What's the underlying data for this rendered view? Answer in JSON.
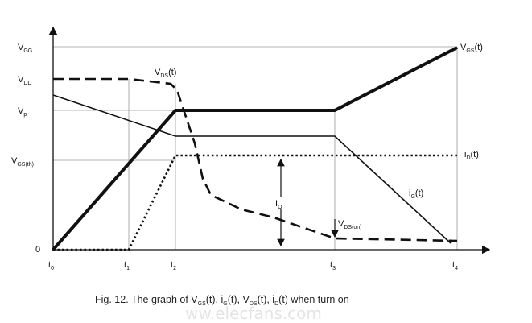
{
  "y_labels": {
    "vgg": "V",
    "vgg_sub": "GG",
    "vdd": "V",
    "vdd_sub": "DD",
    "vp": "V",
    "vp_sub": "p",
    "vgsth": "V",
    "vgsth_sub": "GS(th)",
    "zero": "0"
  },
  "t_labels": {
    "t0": "t",
    "t0_sub": "0",
    "t1": "t",
    "t1_sub": "1",
    "t2": "t",
    "t2_sub": "2",
    "t3": "t",
    "t3_sub": "3",
    "t4": "t",
    "t4_sub": "4"
  },
  "curve_labels": {
    "vgs": "V",
    "vgs_sub": "GS",
    "vgs_post": "(t)",
    "vds": "V",
    "vds_sub": "DS",
    "vds_post": "(t)",
    "id": "i",
    "id_sub": "D",
    "id_post": "(t)",
    "ig": "i",
    "ig_sub": "G",
    "ig_post": "(t)",
    "io": "I",
    "io_sub": "O",
    "vdson": "V",
    "vdson_sub": "DS(on)"
  },
  "caption": {
    "p1": "Fig. 12. The graph of V",
    "s1": "GS",
    "p2": "(t), i",
    "s2": "G",
    "p3": "(t), V",
    "s3": "DS",
    "p4": "(t), i",
    "s4": "D",
    "p5": "(t) when turn on"
  },
  "watermark": "ww.elecfans.com"
}
